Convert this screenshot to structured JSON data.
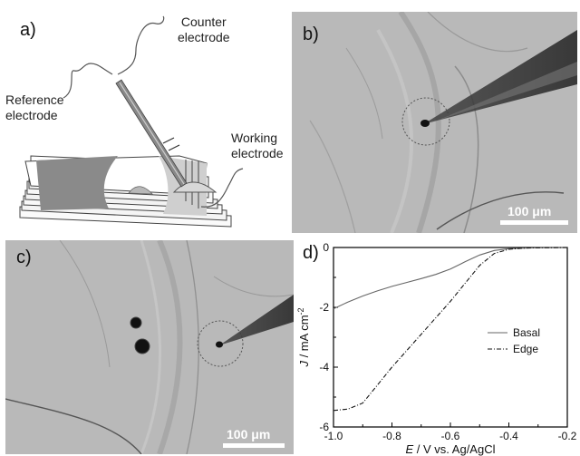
{
  "panels": {
    "a": {
      "label": "a)",
      "counter": "Counter\nelectrode",
      "reference": "Reference\nelectrode",
      "working": "Working\nelectrode"
    },
    "b": {
      "label": "b)",
      "scale": "100 μm"
    },
    "c": {
      "label": "c)",
      "scale": "100 μm"
    },
    "d": {
      "label": "d)"
    }
  },
  "chart_data": {
    "type": "line",
    "xlabel": "E / V vs. Ag/AgCl",
    "ylabel": "J / mA cm-2",
    "xlim": [
      -1.0,
      -0.2
    ],
    "ylim": [
      -6,
      0
    ],
    "x_ticks": [
      "-1.0",
      "-0.8",
      "-0.6",
      "-0.4",
      "-0.2"
    ],
    "y_ticks": [
      "0",
      "-2",
      "-4",
      "-6"
    ],
    "legend_position": "center-right",
    "series": [
      {
        "name": "Basal",
        "style": "solid",
        "points": [
          [
            -1.0,
            -2.05
          ],
          [
            -0.95,
            -1.82
          ],
          [
            -0.9,
            -1.62
          ],
          [
            -0.85,
            -1.45
          ],
          [
            -0.8,
            -1.3
          ],
          [
            -0.75,
            -1.17
          ],
          [
            -0.7,
            -1.04
          ],
          [
            -0.65,
            -0.9
          ],
          [
            -0.6,
            -0.72
          ],
          [
            -0.55,
            -0.48
          ],
          [
            -0.5,
            -0.25
          ],
          [
            -0.45,
            -0.1
          ],
          [
            -0.4,
            -0.04
          ],
          [
            -0.35,
            -0.02
          ],
          [
            -0.3,
            -0.01
          ],
          [
            -0.2,
            0.0
          ]
        ]
      },
      {
        "name": "Edge",
        "style": "dash-dot",
        "points": [
          [
            -1.0,
            -5.45
          ],
          [
            -0.95,
            -5.4
          ],
          [
            -0.9,
            -5.2
          ],
          [
            -0.85,
            -4.6
          ],
          [
            -0.8,
            -4.0
          ],
          [
            -0.75,
            -3.45
          ],
          [
            -0.7,
            -2.9
          ],
          [
            -0.65,
            -2.35
          ],
          [
            -0.6,
            -1.8
          ],
          [
            -0.55,
            -1.2
          ],
          [
            -0.5,
            -0.6
          ],
          [
            -0.45,
            -0.2
          ],
          [
            -0.4,
            -0.06
          ],
          [
            -0.35,
            -0.02
          ],
          [
            -0.3,
            -0.01
          ],
          [
            -0.2,
            0.0
          ]
        ]
      }
    ]
  }
}
